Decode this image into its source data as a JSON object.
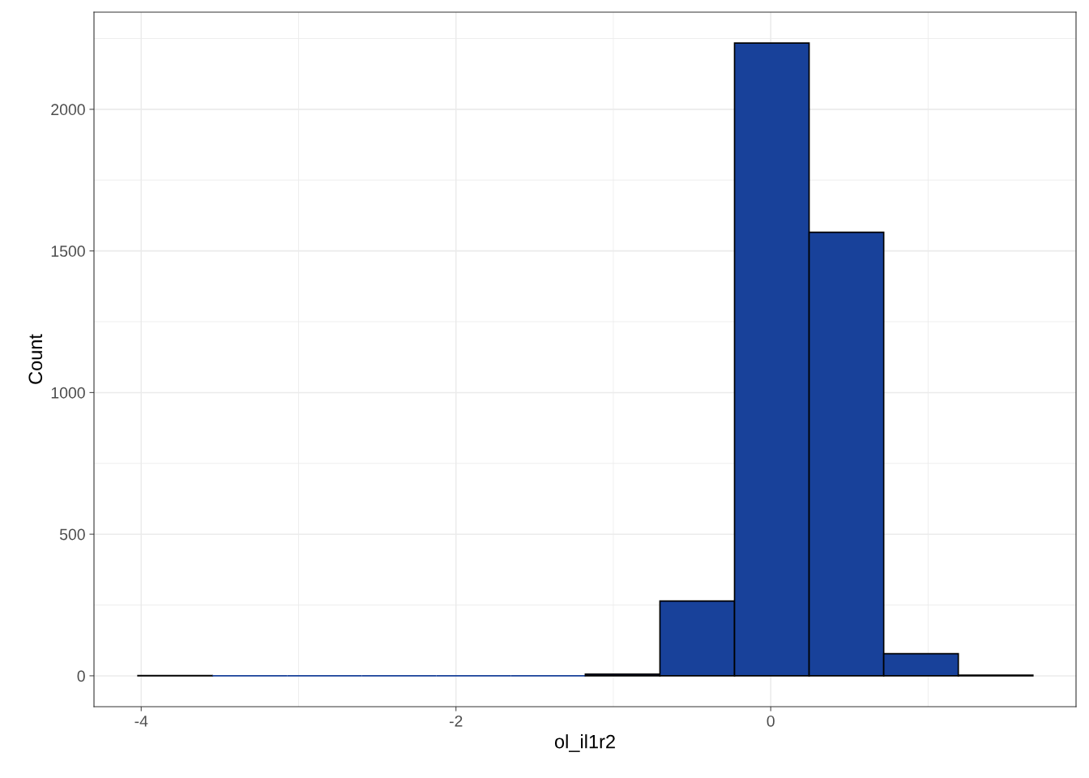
{
  "chart_data": {
    "type": "histogram",
    "xlabel": "ol_il1r2",
    "ylabel": "Count",
    "bins": [
      -4.021,
      -3.547,
      -3.073,
      -2.599,
      -2.125,
      -1.652,
      -1.178,
      -0.704,
      -0.23,
      0.244,
      0.718,
      1.192,
      1.666
    ],
    "values": [
      1,
      0,
      0,
      0,
      0,
      0,
      6,
      264,
      2234,
      1566,
      78,
      2
    ],
    "color": "#18419a",
    "xlim": [
      -4.3,
      1.94
    ],
    "xticks": [
      -4,
      -2,
      0
    ],
    "ylim": [
      -109,
      2343
    ],
    "yticks": [
      0,
      500,
      1000,
      1500,
      2000
    ],
    "grid": true,
    "legend": false
  }
}
